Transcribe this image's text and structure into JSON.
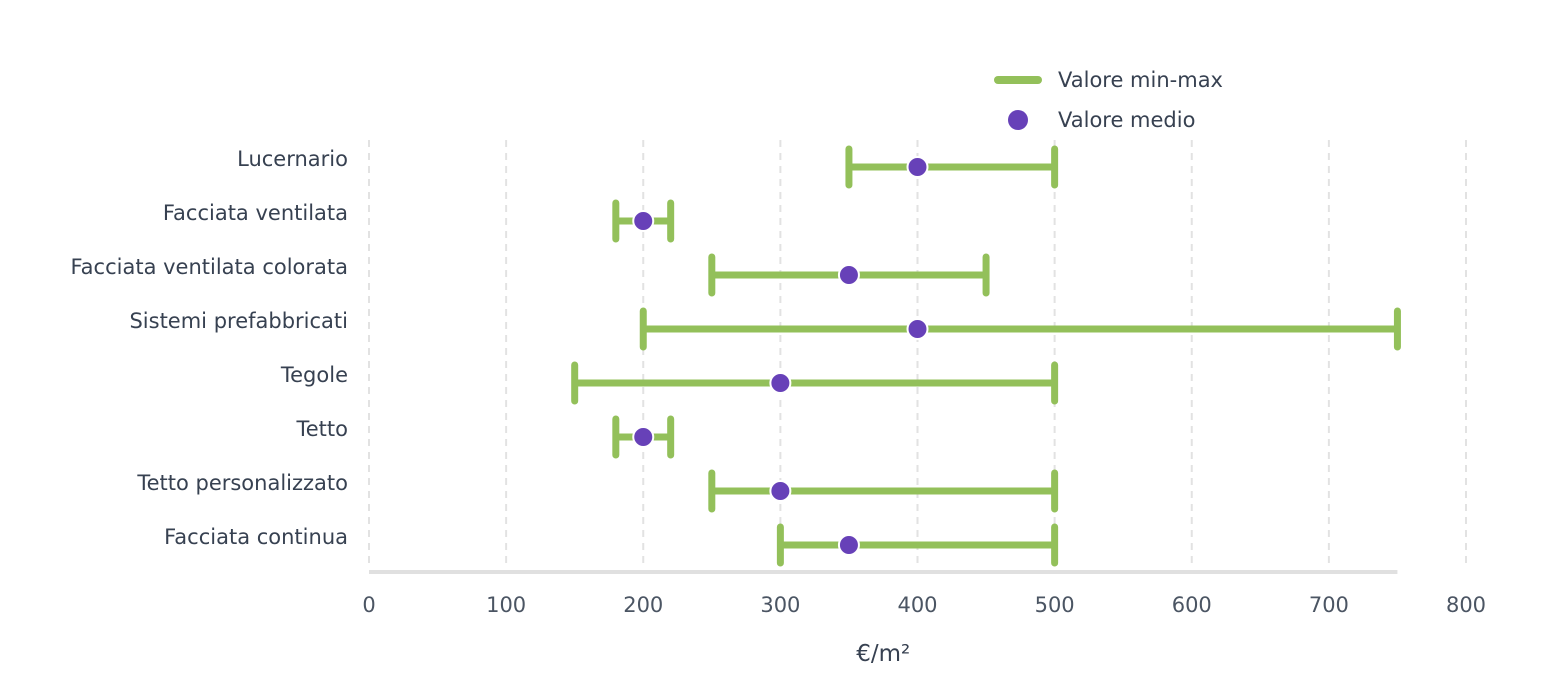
{
  "chart_data": {
    "type": "errorbar",
    "categories": [
      "Lucernario",
      "Facciata ventilata",
      "Facciata ventilata colorata",
      "Sistemi prefabbricati",
      "Tegole",
      "Tetto",
      "Tetto personalizzato",
      "Facciata continua"
    ],
    "series": [
      {
        "name": "Valore min-max",
        "min": [
          350,
          180,
          250,
          200,
          150,
          180,
          250,
          300
        ],
        "max": [
          500,
          220,
          450,
          750,
          500,
          220,
          500,
          500
        ]
      },
      {
        "name": "Valore medio",
        "values": [
          400,
          200,
          350,
          400,
          300,
          200,
          300,
          350
        ]
      }
    ],
    "xlabel": "€/m²",
    "ylabel": "",
    "xlim": [
      0,
      800
    ],
    "xticks": [
      0,
      100,
      200,
      300,
      400,
      500,
      600,
      700,
      800
    ],
    "grid": "vertical dashed",
    "legend_position": "top-right",
    "colors": {
      "range": "#93c05a",
      "mean": "#6741b8",
      "grid": "#e2e2e2",
      "axis": "#e0e0e0"
    }
  }
}
